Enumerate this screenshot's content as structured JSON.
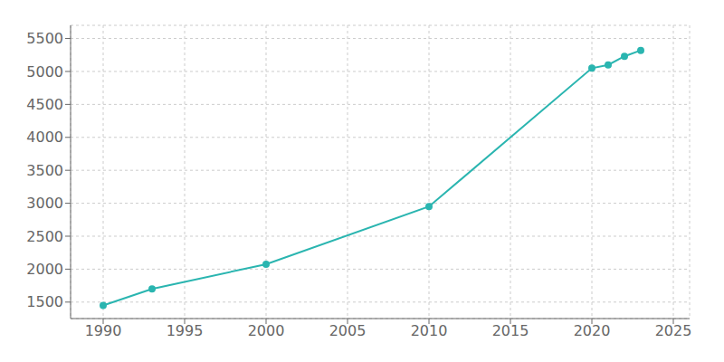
{
  "chart_data": {
    "type": "line",
    "x": [
      1990,
      1993,
      2000,
      2010,
      2020,
      2021,
      2022,
      2023
    ],
    "values": [
      1450,
      1700,
      2075,
      2950,
      5050,
      5100,
      5230,
      5320
    ],
    "color": "#2ab5b0",
    "marker": "circle",
    "xlim": [
      1988,
      2026
    ],
    "ylim": [
      1250,
      5700
    ],
    "xticks": [
      1990,
      1995,
      2000,
      2005,
      2010,
      2015,
      2020,
      2025
    ],
    "yticks": [
      1500,
      2000,
      2500,
      3000,
      3500,
      4000,
      4500,
      5000,
      5500
    ],
    "grid": true
  }
}
